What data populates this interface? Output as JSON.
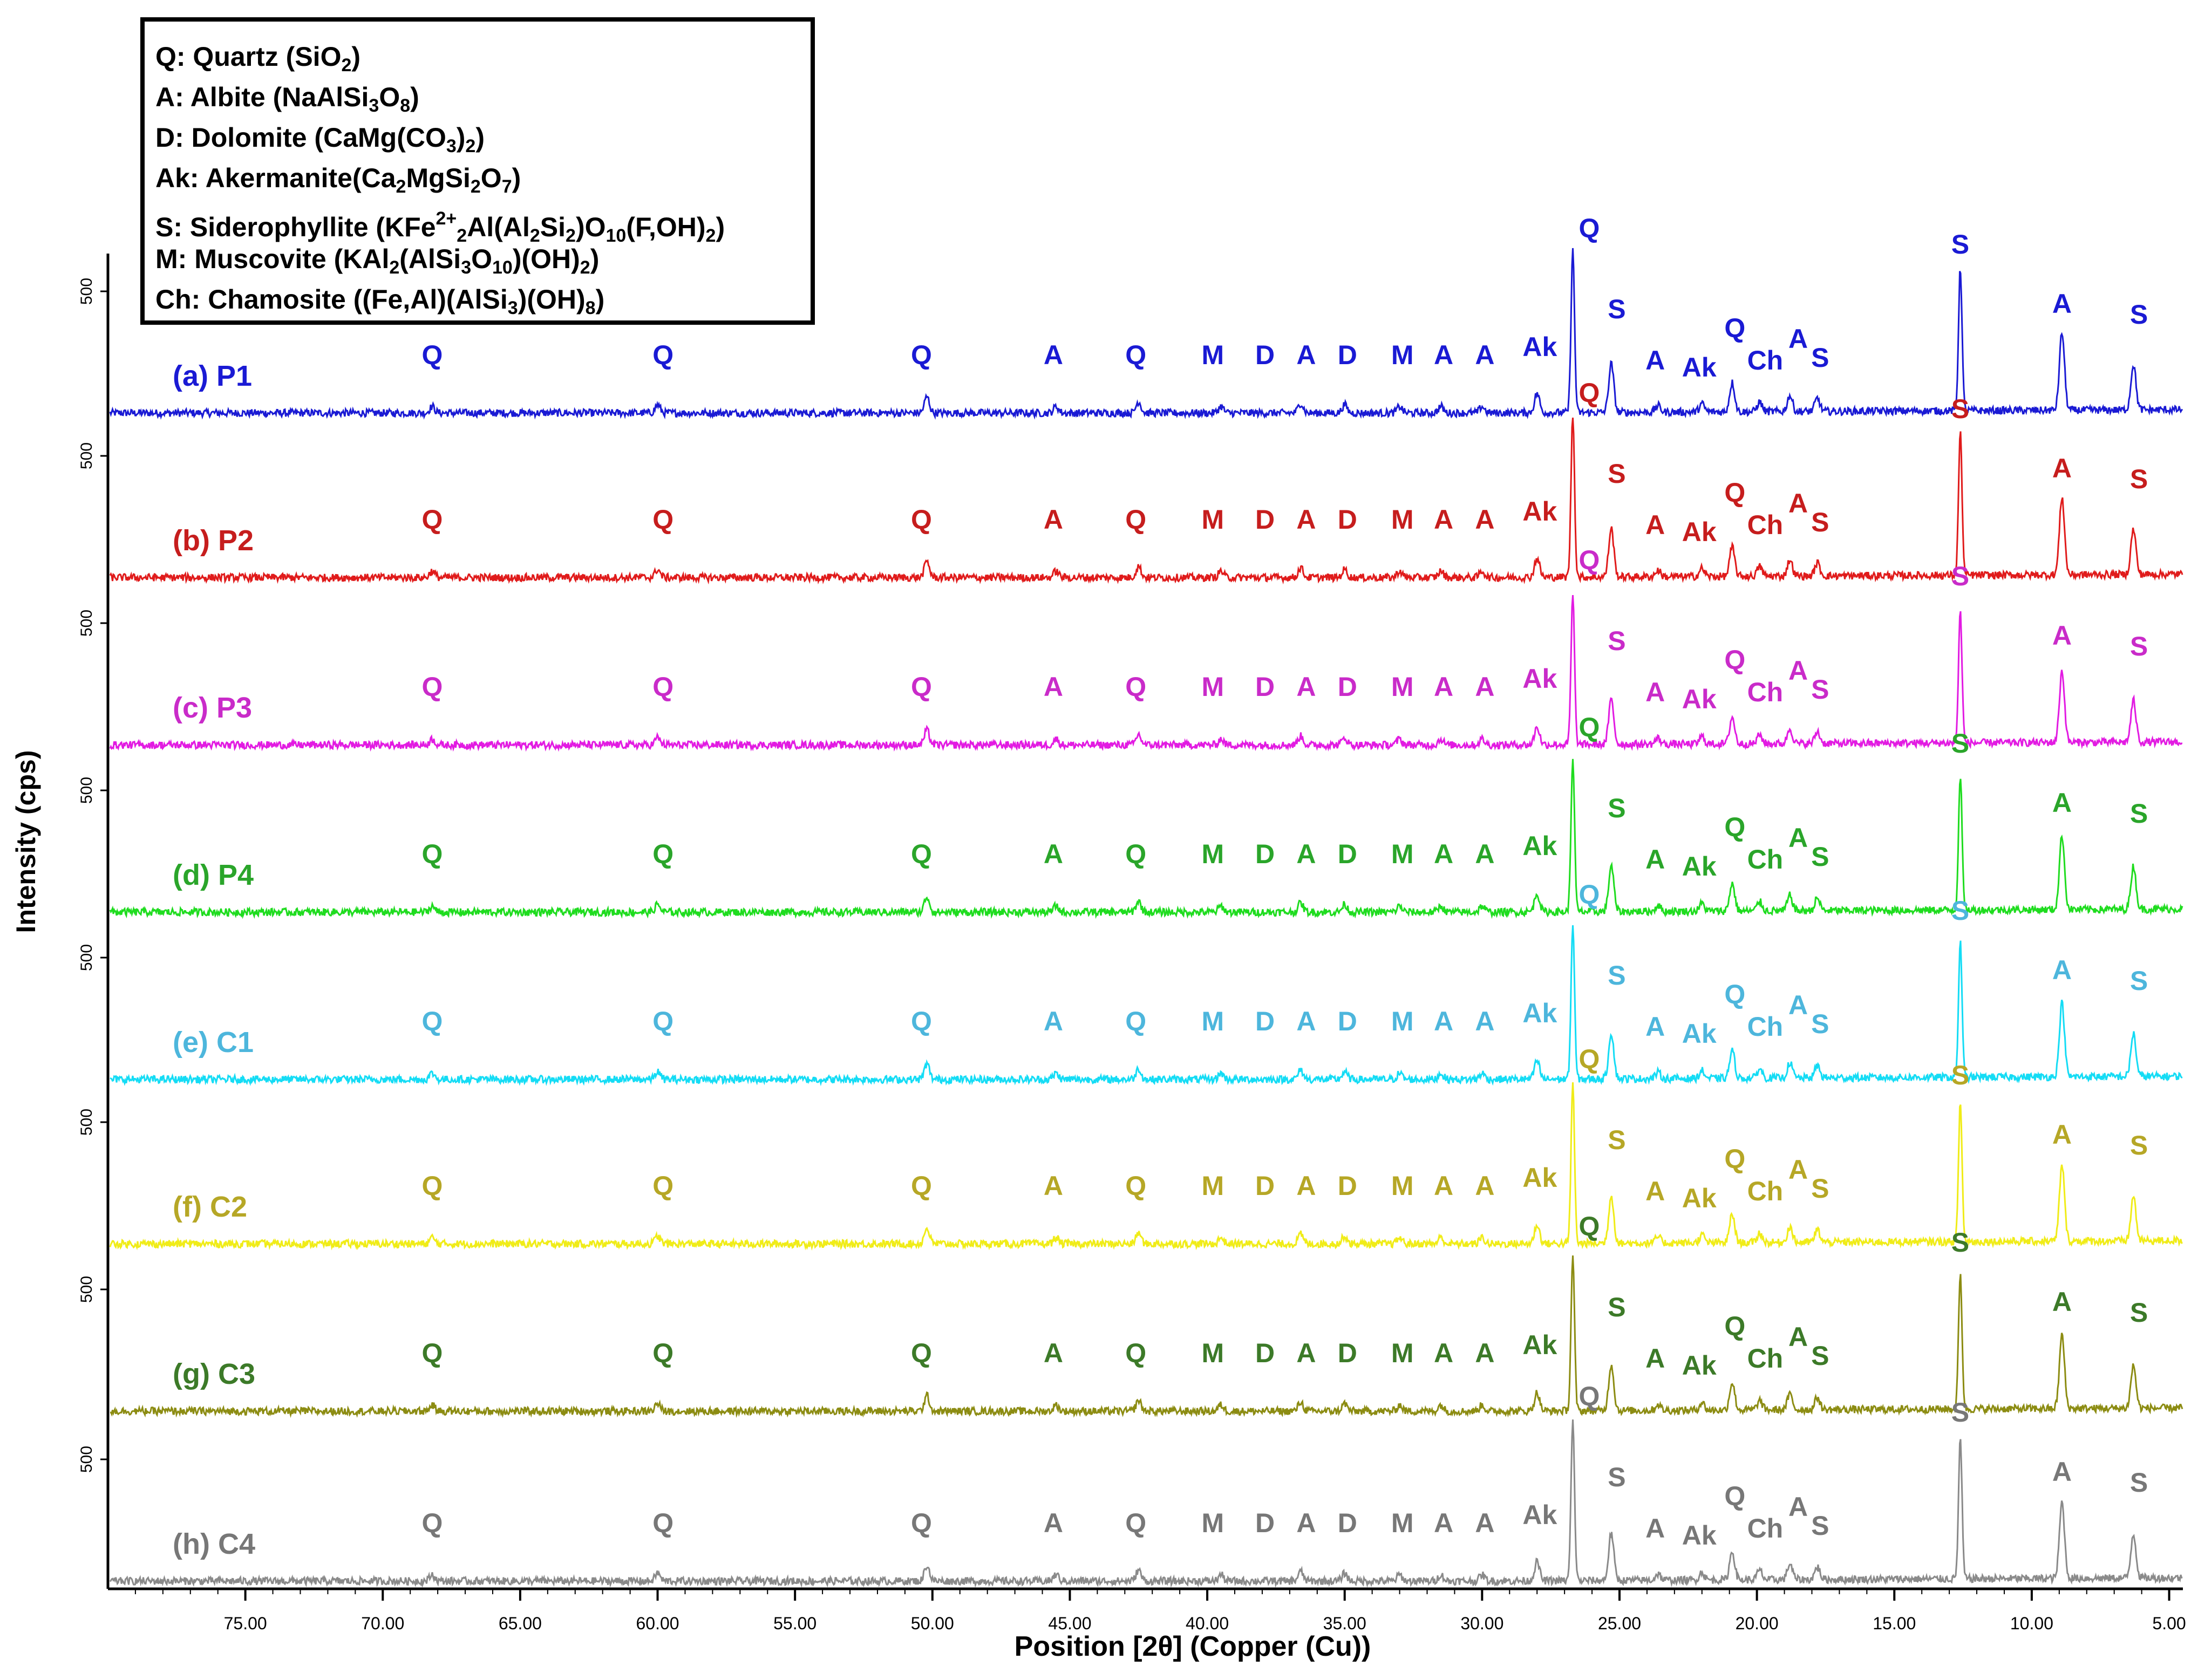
{
  "chart_data": {
    "type": "line",
    "title": "",
    "xlabel": "Position [2θ] (Copper (Cu))",
    "ylabel": "Intensity (cps)",
    "xlim": [
      80,
      4.5
    ],
    "x_reversed": true,
    "x_ticks": [
      75,
      70,
      65,
      60,
      55,
      50,
      45,
      40,
      35,
      30,
      25,
      20,
      15,
      10,
      5
    ],
    "x_tick_labels": [
      "75.00",
      "70.00",
      "65.00",
      "60.00",
      "55.00",
      "50.00",
      "45.00",
      "40.00",
      "35.00",
      "30.00",
      "25.00",
      "20.00",
      "15.00",
      "10.00",
      "5.00"
    ],
    "y_tick_label": "500",
    "legend": [
      {
        "abbr": "Q",
        "name": "Quartz",
        "formula": "SiO2"
      },
      {
        "abbr": "A",
        "name": "Albite",
        "formula": "NaAlSi3O8"
      },
      {
        "abbr": "D",
        "name": "Dolomite",
        "formula": "CaMg(CO3)2"
      },
      {
        "abbr": "Ak",
        "name": "Akermanite",
        "formula": "Ca2MgSi2O7"
      },
      {
        "abbr": "S",
        "name": "Siderophyllite",
        "formula": "KFe2+2Al(Al2Si2)O10(F,OH)2"
      },
      {
        "abbr": "M",
        "name": "Muscovite",
        "formula": "KAl2(AlSi3O10)(OH)2"
      },
      {
        "abbr": "Ch",
        "name": "Chamosite",
        "formula": "((Fe,Al)(AlSi3)(OH)8"
      }
    ],
    "series": [
      {
        "name": "(a) P1",
        "color": "#1a1ad4",
        "label_color": "#1a1ad4",
        "scale": 1.0
      },
      {
        "name": "(b) P2",
        "color": "#e01b1b",
        "label_color": "#c61d1d",
        "scale": 1.0
      },
      {
        "name": "(c) P3",
        "color": "#e21be2",
        "label_color": "#c92bc9",
        "scale": 0.92
      },
      {
        "name": "(d) P4",
        "color": "#1fdc1f",
        "label_color": "#2aa52a",
        "scale": 0.95
      },
      {
        "name": "(e) C1",
        "color": "#14dcf5",
        "label_color": "#4db6dc",
        "scale": 0.95
      },
      {
        "name": "(f) C2",
        "color": "#f0ec18",
        "label_color": "#b6a726",
        "scale": 0.98
      },
      {
        "name": "(g) C3",
        "color": "#8c8c12",
        "label_color": "#3c7a28",
        "scale": 0.95
      },
      {
        "name": "(h) C4",
        "color": "#8a8a8a",
        "label_color": "#777777",
        "scale": 0.98
      }
    ],
    "peaks": [
      {
        "pos": 26.7,
        "height": 1.0,
        "label": "Q"
      },
      {
        "pos": 12.6,
        "height": 0.88,
        "label": "S"
      },
      {
        "pos": 8.9,
        "height": 0.48,
        "label": "A"
      },
      {
        "pos": 6.3,
        "height": 0.28,
        "label": "S"
      },
      {
        "pos": 25.3,
        "height": 0.3,
        "label": "S"
      },
      {
        "pos": 20.9,
        "height": 0.18,
        "label": "Q"
      },
      {
        "pos": 18.8,
        "height": 0.1,
        "label": "A"
      },
      {
        "pos": 17.8,
        "height": 0.08,
        "label": "S"
      },
      {
        "pos": 28.0,
        "height": 0.12,
        "label": "Ak"
      },
      {
        "pos": 50.2,
        "height": 0.1,
        "label": "Q"
      },
      {
        "pos": 60.0,
        "height": 0.05,
        "label": "Q"
      },
      {
        "pos": 68.2,
        "height": 0.04,
        "label": "Q"
      },
      {
        "pos": 42.5,
        "height": 0.07,
        "label": "Q"
      },
      {
        "pos": 45.5,
        "height": 0.04,
        "label": "A"
      },
      {
        "pos": 39.5,
        "height": 0.04,
        "label": "M"
      },
      {
        "pos": 36.6,
        "height": 0.06,
        "label": "A"
      },
      {
        "pos": 35.0,
        "height": 0.05,
        "label": "D"
      },
      {
        "pos": 33.0,
        "height": 0.04,
        "label": "M"
      },
      {
        "pos": 31.5,
        "height": 0.04,
        "label": "A"
      },
      {
        "pos": 30.0,
        "height": 0.04,
        "label": "A"
      },
      {
        "pos": 23.6,
        "height": 0.04,
        "label": "A"
      },
      {
        "pos": 22.0,
        "height": 0.05,
        "label": "Ak"
      },
      {
        "pos": 19.9,
        "height": 0.06,
        "label": "Ch"
      }
    ],
    "peak_labels": [
      {
        "text": "Q",
        "x": 68.2
      },
      {
        "text": "Q",
        "x": 59.8
      },
      {
        "text": "Q",
        "x": 50.4
      },
      {
        "text": "A",
        "x": 45.6
      },
      {
        "text": "Q",
        "x": 42.6
      },
      {
        "text": "M",
        "x": 39.8
      },
      {
        "text": "D",
        "x": 37.9
      },
      {
        "text": "A",
        "x": 36.4
      },
      {
        "text": "D",
        "x": 34.9
      },
      {
        "text": "M",
        "x": 32.9
      },
      {
        "text": "A",
        "x": 31.4
      },
      {
        "text": "A",
        "x": 29.9
      },
      {
        "text": "Ak",
        "x": 27.9
      },
      {
        "text": "Q",
        "x": 26.1
      },
      {
        "text": "S",
        "x": 25.1
      },
      {
        "text": "A",
        "x": 23.7
      },
      {
        "text": "Ak",
        "x": 22.1
      },
      {
        "text": "Q",
        "x": 20.8
      },
      {
        "text": "Ch",
        "x": 19.7
      },
      {
        "text": "A",
        "x": 18.5
      },
      {
        "text": "S",
        "x": 17.7
      },
      {
        "text": "S",
        "x": 12.6
      },
      {
        "text": "A",
        "x": 8.9
      },
      {
        "text": "S",
        "x": 6.1
      }
    ]
  }
}
